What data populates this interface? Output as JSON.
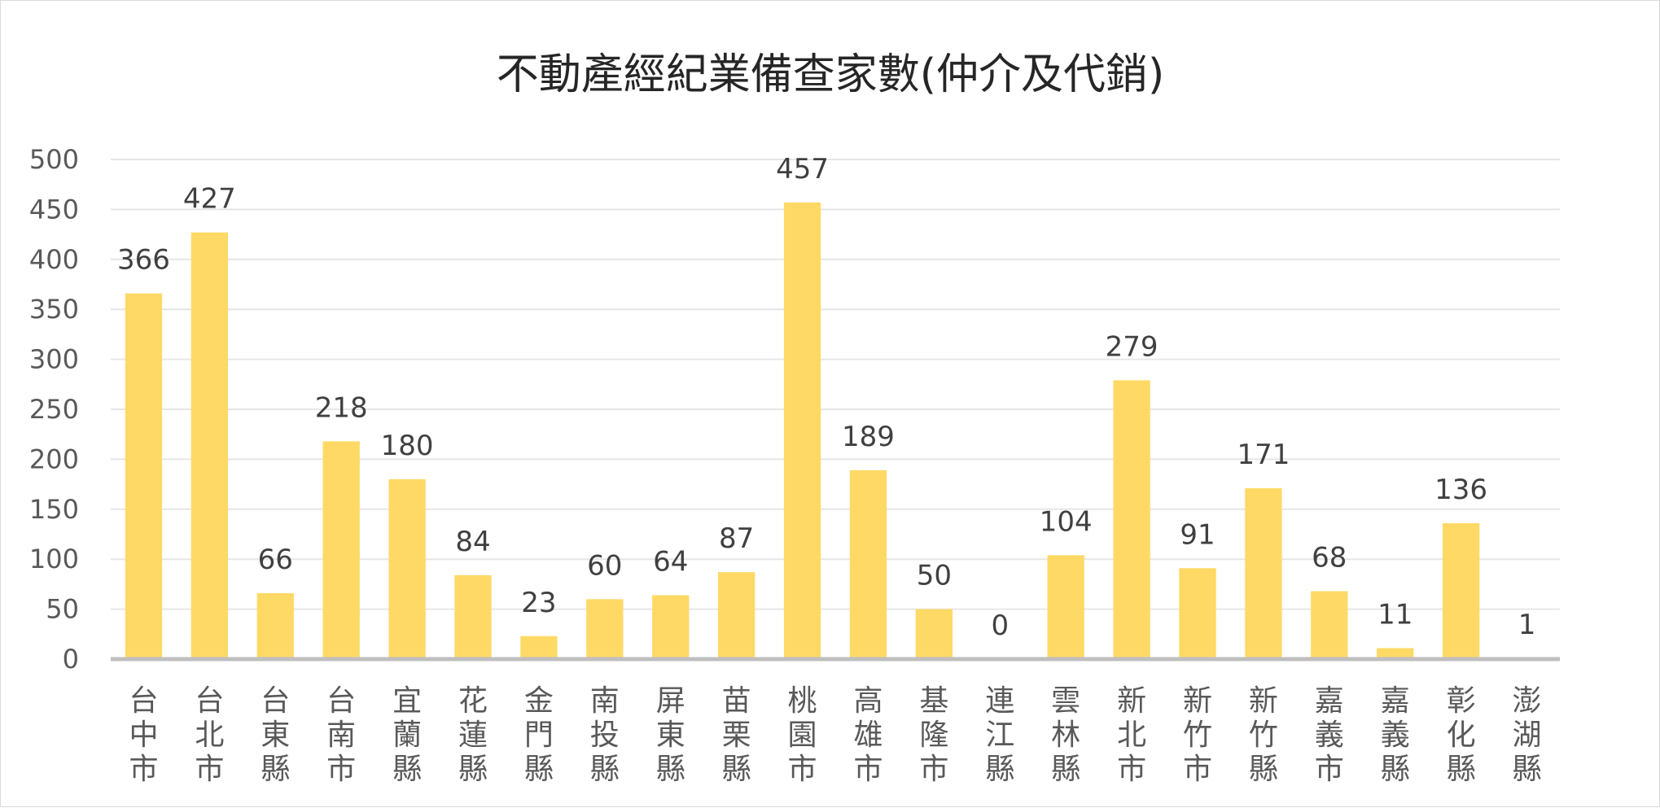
{
  "chart_data": {
    "type": "bar",
    "title": "不動產經紀業備查家數(仲介及代銷)",
    "xlabel": "",
    "ylabel": "",
    "ylim": [
      0,
      500
    ],
    "yticks": [
      0,
      50,
      100,
      150,
      200,
      250,
      300,
      350,
      400,
      450,
      500
    ],
    "grid": true,
    "legend": "none",
    "bar_color": "#FFD966",
    "categories": [
      "台中市",
      "台北市",
      "台東縣",
      "台南市",
      "宜蘭縣",
      "花蓮縣",
      "金門縣",
      "南投縣",
      "屏東縣",
      "苗栗縣",
      "桃園市",
      "高雄市",
      "基隆市",
      "連江縣",
      "雲林縣",
      "新北市",
      "新竹市",
      "新竹縣",
      "嘉義市",
      "嘉義縣",
      "彰化縣",
      "澎湖縣"
    ],
    "values": [
      366,
      427,
      66,
      218,
      180,
      84,
      23,
      60,
      64,
      87,
      457,
      189,
      50,
      0,
      104,
      279,
      91,
      171,
      68,
      11,
      136,
      1
    ]
  }
}
